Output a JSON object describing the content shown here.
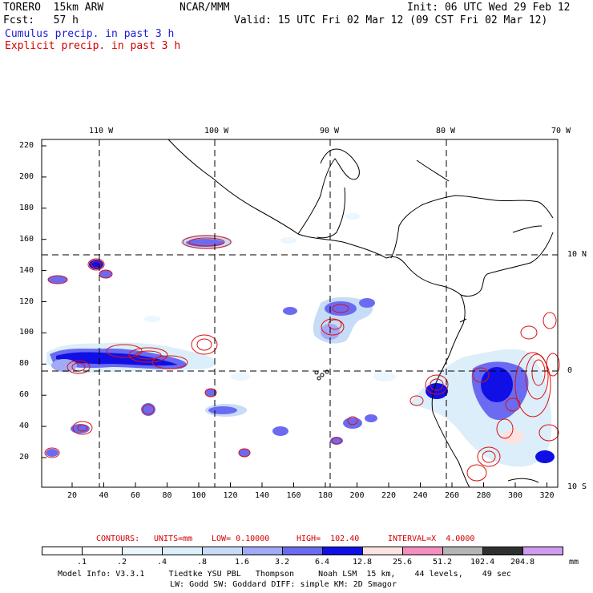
{
  "header": {
    "model": "TORERO  15km ARW",
    "center": "NCAR/MMM",
    "init": "Init: 06 UTC Wed 29 Feb 12",
    "fcst": "Fcst:   57 h",
    "valid": "Valid: 15 UTC Fri 02 Mar 12 (09 CST Fri 02 Mar 12)",
    "legend_cumulus": "Cumulus precip. in past 3 h",
    "legend_explicit": "Explicit precip. in past 3 h"
  },
  "axes": {
    "top_lon_labels": [
      "110 W",
      "100 W",
      "90 W",
      "80 W",
      "70 W"
    ],
    "right_lat_labels": [
      "10 N",
      "0",
      "10 S"
    ],
    "y_ticks": [
      "220",
      "200",
      "180",
      "160",
      "140",
      "120",
      "100",
      "80",
      "60",
      "40",
      "20"
    ],
    "x_ticks": [
      "20",
      "40",
      "60",
      "80",
      "100",
      "120",
      "140",
      "160",
      "180",
      "200",
      "220",
      "240",
      "260",
      "280",
      "300",
      "320"
    ]
  },
  "contour_info": {
    "contours": "CONTOURS:",
    "units": "UNITS=mm",
    "low": "LOW= 0.10000",
    "high": "HIGH=  102.40",
    "interval": "INTERVAL=X  4.0000"
  },
  "colorbar": {
    "labels": [
      ".1",
      ".2",
      ".4",
      ".8",
      "1.6",
      "3.2",
      "6.4",
      "12.8",
      "25.6",
      "51.2",
      "102.4",
      "204.8"
    ],
    "unit": "mm",
    "colors": [
      "#ffffff",
      "#ffffff",
      "#ebf6ff",
      "#dbeefa",
      "#c6dcf7",
      "#a3aaf5",
      "#6b6bf2",
      "#1010e6",
      "#fde2e2",
      "#f48fc0",
      "#b5b5b5",
      "#303030",
      "#cf9cf0"
    ]
  },
  "footer": {
    "line1": "Model Info: V3.3.1     Tiedtke YSU PBL   Thompson     Noah LSM  15 km,    44 levels,    49 sec",
    "line2": "LW: Godd SW: Goddard DIFF: simple KM: 2D Smagor"
  }
}
